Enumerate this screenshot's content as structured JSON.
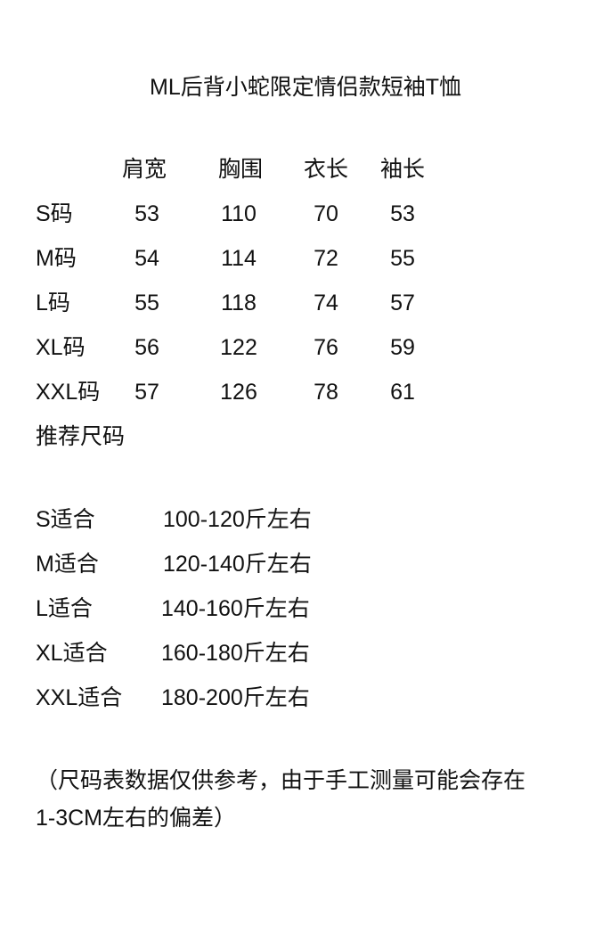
{
  "title": "ML后背小蛇限定情侣款短袖T恤",
  "size_table": {
    "headers": [
      "肩宽",
      "胸围",
      "衣长",
      "袖长"
    ],
    "rows": [
      {
        "size": "S码",
        "values": [
          "53",
          "110",
          "70",
          "53"
        ]
      },
      {
        "size": "M码",
        "values": [
          "54",
          "114",
          "72",
          "55"
        ]
      },
      {
        "size": "L码",
        "values": [
          "55",
          "118",
          "74",
          "57"
        ]
      },
      {
        "size": "XL码",
        "values": [
          "56",
          "122",
          "76",
          "59"
        ]
      },
      {
        "size": "XXL码",
        "values": [
          "57",
          "126",
          "78",
          "61"
        ]
      }
    ]
  },
  "recommend": {
    "heading": "推荐尺码",
    "rows": [
      {
        "size": "S适合",
        "range": "100-120斤左右"
      },
      {
        "size": "M适合",
        "range": "120-140斤左右"
      },
      {
        "size": "L适合",
        "range": "140-160斤左右"
      },
      {
        "size": "XL适合",
        "range": "160-180斤左右"
      },
      {
        "size": "XXL适合",
        "range": "180-200斤左右"
      }
    ]
  },
  "note": {
    "line1": "（尺码表数据仅供参考，由于手工测量可能会存在",
    "line2": "1-3CM左右的偏差）"
  }
}
